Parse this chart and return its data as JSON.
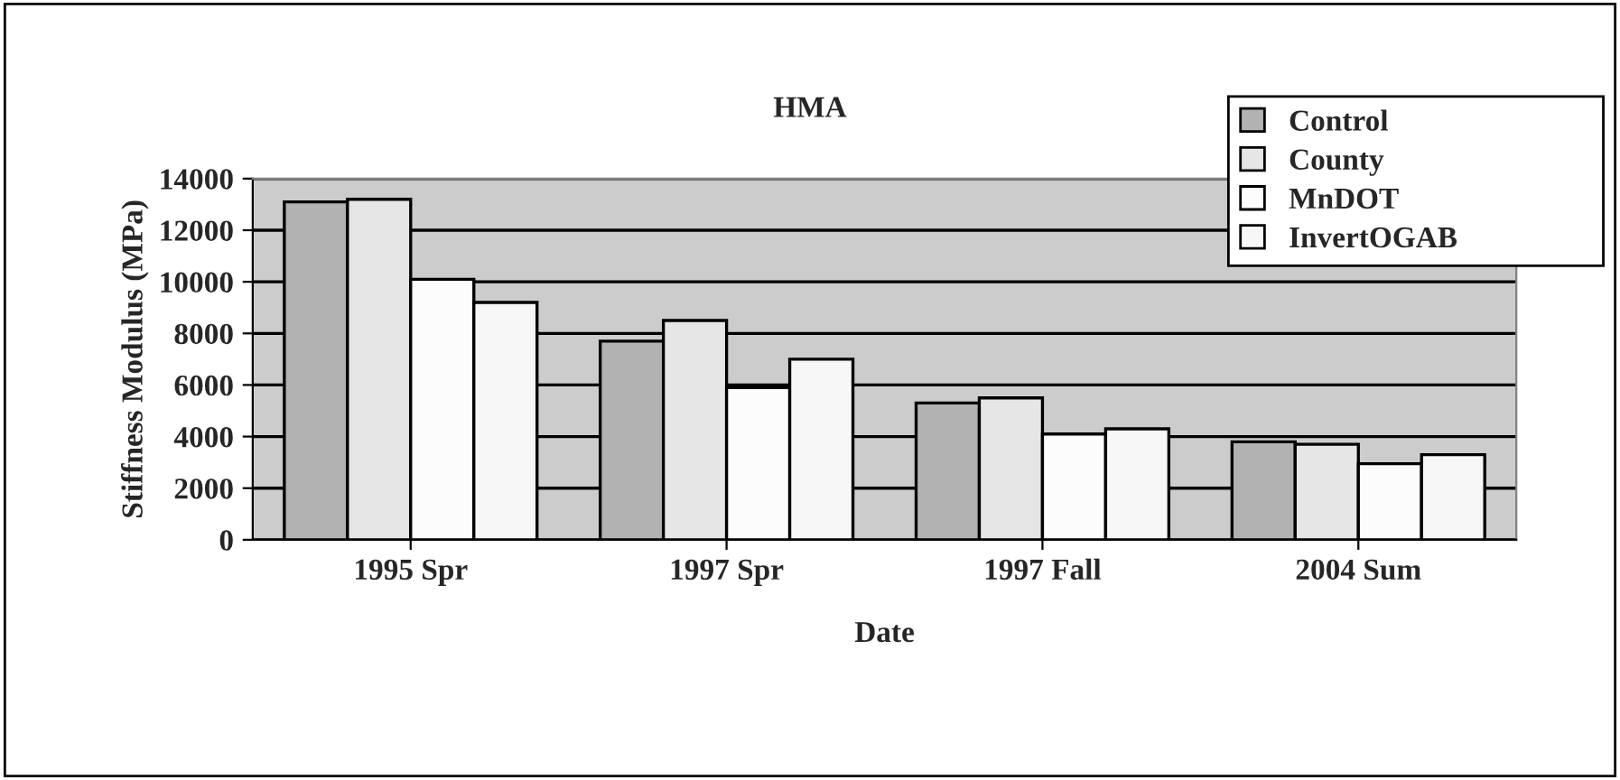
{
  "chart_data": {
    "type": "bar",
    "title": "HMA",
    "xlabel": "Date",
    "ylabel": "Stiffness Modulus (MPa)",
    "categories": [
      "1995 Spr",
      "1997 Spr",
      "1997 Fall",
      "2004 Sum"
    ],
    "series": [
      {
        "name": "Control",
        "color": "#b2b2b2",
        "values": [
          13100,
          7700,
          5300,
          3800
        ]
      },
      {
        "name": "County",
        "color": "#e6e6e6",
        "values": [
          13200,
          8500,
          5500,
          3700
        ]
      },
      {
        "name": "MnDOT",
        "color": "#fcfcfc",
        "values": [
          10100,
          5900,
          4100,
          2950
        ]
      },
      {
        "name": "InvertOGAB",
        "color": "#f7f7f7",
        "values": [
          9200,
          7000,
          4300,
          3300
        ]
      }
    ],
    "ylim": [
      0,
      14000
    ],
    "yticks": [
      0,
      2000,
      4000,
      6000,
      8000,
      10000,
      12000,
      14000
    ],
    "grid": "y",
    "legend": "top right"
  }
}
